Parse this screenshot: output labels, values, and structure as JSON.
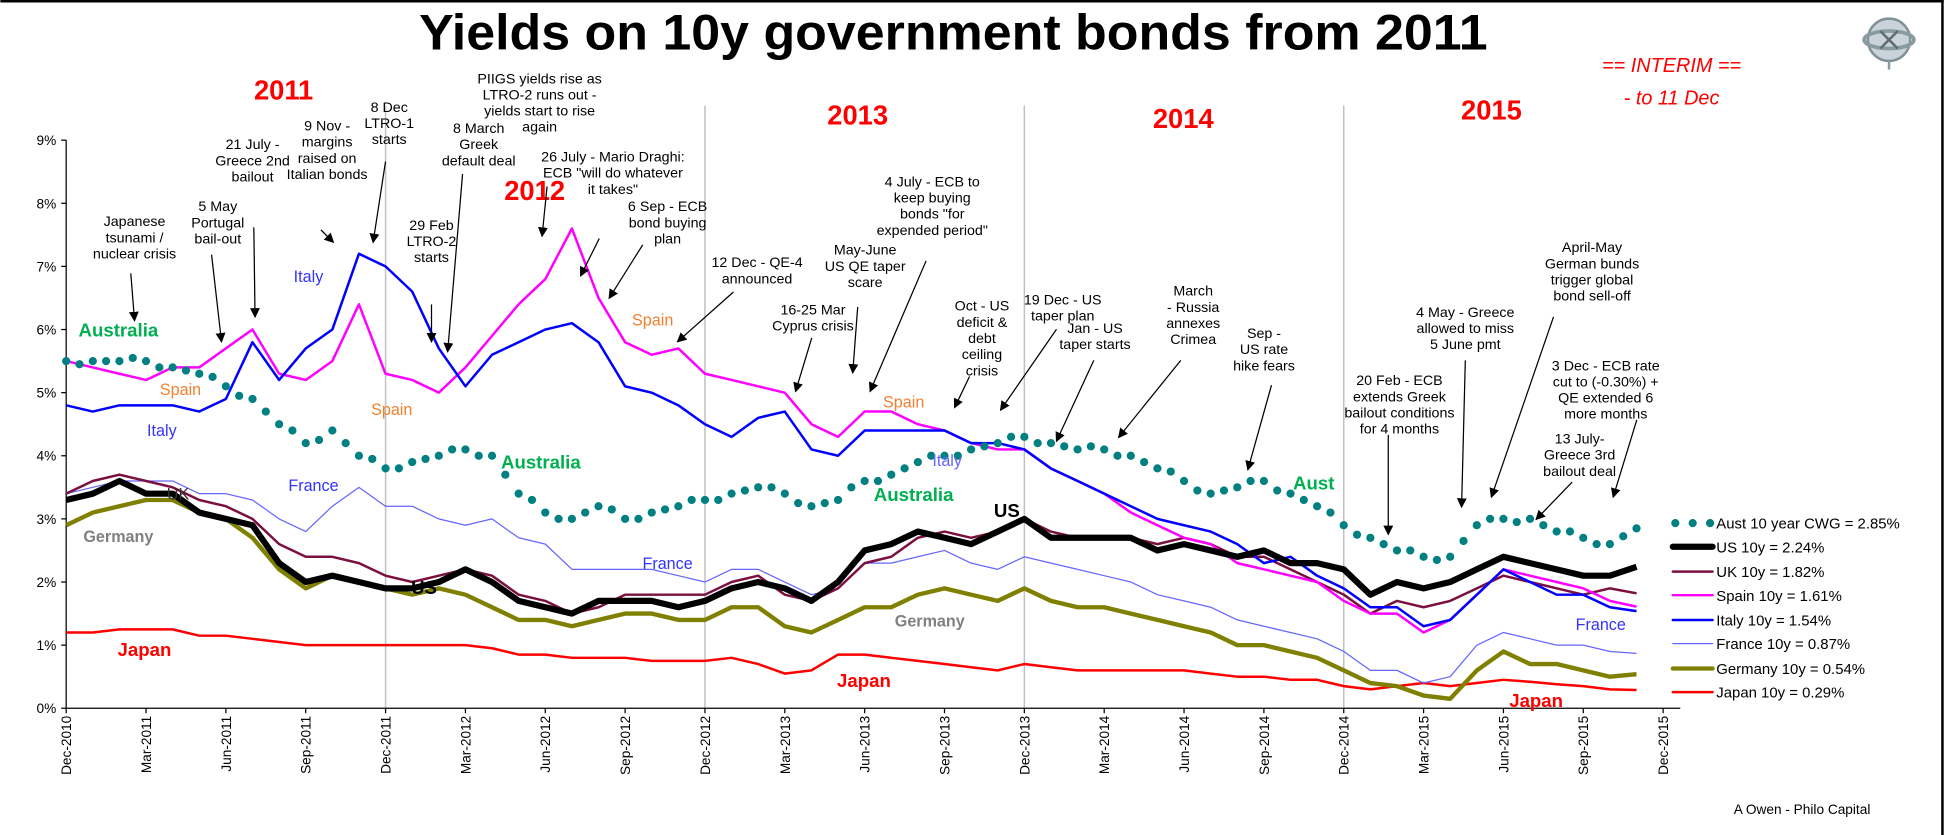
{
  "chart_data": {
    "type": "line",
    "title": "Yields on 10y government bonds from 2011",
    "note": [
      "== INTERIM ==",
      "- to 11 Dec"
    ],
    "credit": "A Owen - Philo Capital",
    "xlabel": "",
    "ylabel": "",
    "ylim": [
      0,
      9
    ],
    "y_ticks": [
      "0%",
      "1%",
      "2%",
      "3%",
      "4%",
      "5%",
      "6%",
      "7%",
      "8%",
      "9%"
    ],
    "x_start": "Dec-2010",
    "x_frequency": "monthly",
    "x_ticks": [
      "Dec-2010",
      "Mar-2011",
      "Jun-2011",
      "Sep-2011",
      "Dec-2011",
      "Mar-2012",
      "Jun-2012",
      "Sep-2012",
      "Dec-2012",
      "Mar-2013",
      "Jun-2013",
      "Sep-2013",
      "Dec-2013",
      "Mar-2014",
      "Jun-2014",
      "Sep-2014",
      "Dec-2014",
      "Mar-2015",
      "Jun-2015",
      "Sep-2015",
      "Dec-2015"
    ],
    "year_gridlines": [
      "Dec-2011",
      "Dec-2012",
      "Dec-2013",
      "Dec-2014"
    ],
    "year_labels": [
      "2011",
      "2012",
      "2013",
      "2014",
      "2015"
    ],
    "legend_position": "right",
    "series": [
      {
        "name": "Aust 10 year CWG = 2.85%",
        "style": "dots",
        "color": "#008080",
        "values": [
          5.5,
          5.5,
          5.5,
          5.5,
          5.4,
          5.3,
          5.1,
          4.9,
          4.5,
          4.2,
          4.4,
          4.0,
          3.8,
          3.9,
          4.0,
          4.1,
          4.0,
          3.4,
          3.1,
          3.0,
          3.2,
          3.0,
          3.1,
          3.2,
          3.3,
          3.4,
          3.5,
          3.4,
          3.2,
          3.3,
          3.6,
          3.7,
          3.9,
          4.0,
          4.1,
          4.2,
          4.3,
          4.2,
          4.1,
          4.1,
          4.0,
          3.8,
          3.6,
          3.4,
          3.5,
          3.6,
          3.4,
          3.2,
          2.9,
          2.7,
          2.5,
          2.4,
          2.4,
          2.9,
          3.0,
          3.0,
          2.8,
          2.7,
          2.6,
          2.85
        ]
      },
      {
        "name": "US 10y = 2.24%",
        "style": "thick",
        "color": "#000000",
        "values": [
          3.3,
          3.4,
          3.6,
          3.4,
          3.4,
          3.1,
          3.0,
          2.9,
          2.3,
          2.0,
          2.1,
          2.0,
          1.9,
          1.9,
          2.0,
          2.2,
          2.0,
          1.7,
          1.6,
          1.5,
          1.7,
          1.7,
          1.7,
          1.6,
          1.7,
          1.9,
          2.0,
          1.9,
          1.7,
          2.0,
          2.5,
          2.6,
          2.8,
          2.7,
          2.6,
          2.8,
          3.0,
          2.7,
          2.7,
          2.7,
          2.7,
          2.5,
          2.6,
          2.5,
          2.4,
          2.5,
          2.3,
          2.3,
          2.2,
          1.8,
          2.0,
          1.9,
          2.0,
          2.2,
          2.4,
          2.3,
          2.2,
          2.1,
          2.1,
          2.24
        ]
      },
      {
        "name": "UK 10y = 1.82%",
        "style": "line",
        "color": "#7b0f3f",
        "values": [
          3.4,
          3.6,
          3.7,
          3.6,
          3.5,
          3.3,
          3.2,
          3.0,
          2.6,
          2.4,
          2.4,
          2.3,
          2.1,
          2.0,
          2.1,
          2.2,
          2.1,
          1.8,
          1.7,
          1.5,
          1.6,
          1.8,
          1.8,
          1.8,
          1.8,
          2.0,
          2.1,
          1.8,
          1.7,
          1.9,
          2.3,
          2.4,
          2.7,
          2.8,
          2.7,
          2.8,
          3.0,
          2.8,
          2.7,
          2.7,
          2.7,
          2.6,
          2.7,
          2.6,
          2.4,
          2.4,
          2.2,
          2.0,
          1.8,
          1.5,
          1.7,
          1.6,
          1.7,
          1.9,
          2.1,
          2.0,
          1.9,
          1.8,
          1.9,
          1.82
        ]
      },
      {
        "name": "Spain 10y = 1.61%",
        "style": "line",
        "color": "#ff00ff",
        "values": [
          5.5,
          5.4,
          5.3,
          5.2,
          5.4,
          5.4,
          5.7,
          6.0,
          5.3,
          5.2,
          5.5,
          6.4,
          5.3,
          5.2,
          5.0,
          5.4,
          5.9,
          6.4,
          6.8,
          7.6,
          6.5,
          5.8,
          5.6,
          5.7,
          5.3,
          5.2,
          5.1,
          5.0,
          4.5,
          4.3,
          4.7,
          4.7,
          4.5,
          4.4,
          4.2,
          4.1,
          4.1,
          3.8,
          3.6,
          3.4,
          3.1,
          2.9,
          2.7,
          2.6,
          2.3,
          2.2,
          2.1,
          2.0,
          1.7,
          1.5,
          1.5,
          1.2,
          1.4,
          1.8,
          2.2,
          2.1,
          2.0,
          1.9,
          1.7,
          1.61
        ]
      },
      {
        "name": "Italy 10y = 1.54%",
        "style": "line",
        "color": "#0000ff",
        "values": [
          4.8,
          4.7,
          4.8,
          4.8,
          4.8,
          4.7,
          4.9,
          5.8,
          5.2,
          5.7,
          6.0,
          7.2,
          7.0,
          6.6,
          5.7,
          5.1,
          5.6,
          5.8,
          6.0,
          6.1,
          5.8,
          5.1,
          5.0,
          4.8,
          4.5,
          4.3,
          4.6,
          4.7,
          4.1,
          4.0,
          4.4,
          4.4,
          4.4,
          4.4,
          4.2,
          4.2,
          4.1,
          3.8,
          3.6,
          3.4,
          3.2,
          3.0,
          2.9,
          2.8,
          2.6,
          2.3,
          2.4,
          2.1,
          1.9,
          1.6,
          1.6,
          1.3,
          1.4,
          1.8,
          2.2,
          2.0,
          1.8,
          1.8,
          1.6,
          1.54
        ]
      },
      {
        "name": "France 10y = 0.87%",
        "style": "thin",
        "color": "#6666ff",
        "values": [
          3.4,
          3.5,
          3.6,
          3.6,
          3.6,
          3.4,
          3.4,
          3.3,
          3.0,
          2.8,
          3.2,
          3.5,
          3.2,
          3.2,
          3.0,
          2.9,
          3.0,
          2.7,
          2.6,
          2.2,
          2.2,
          2.2,
          2.2,
          2.1,
          2.0,
          2.2,
          2.2,
          2.0,
          1.8,
          1.9,
          2.3,
          2.3,
          2.4,
          2.5,
          2.3,
          2.2,
          2.4,
          2.3,
          2.2,
          2.1,
          2.0,
          1.8,
          1.7,
          1.6,
          1.4,
          1.3,
          1.2,
          1.1,
          0.9,
          0.6,
          0.6,
          0.4,
          0.5,
          1.0,
          1.2,
          1.1,
          1.0,
          1.0,
          0.9,
          0.87
        ]
      },
      {
        "name": "Germany 10y = 0.54%",
        "style": "medium",
        "color": "#808000",
        "values": [
          2.9,
          3.1,
          3.2,
          3.3,
          3.3,
          3.1,
          3.0,
          2.7,
          2.2,
          1.9,
          2.1,
          2.0,
          1.9,
          1.8,
          1.9,
          1.8,
          1.6,
          1.4,
          1.4,
          1.3,
          1.4,
          1.5,
          1.5,
          1.4,
          1.4,
          1.6,
          1.6,
          1.3,
          1.2,
          1.4,
          1.6,
          1.6,
          1.8,
          1.9,
          1.8,
          1.7,
          1.9,
          1.7,
          1.6,
          1.6,
          1.5,
          1.4,
          1.3,
          1.2,
          1.0,
          1.0,
          0.9,
          0.8,
          0.6,
          0.4,
          0.35,
          0.2,
          0.15,
          0.6,
          0.9,
          0.7,
          0.7,
          0.6,
          0.5,
          0.54
        ]
      },
      {
        "name": "Japan 10y = 0.29%",
        "style": "line",
        "color": "#ff0000",
        "values": [
          1.2,
          1.2,
          1.25,
          1.25,
          1.25,
          1.15,
          1.15,
          1.1,
          1.05,
          1.0,
          1.0,
          1.0,
          1.0,
          1.0,
          1.0,
          1.0,
          0.95,
          0.85,
          0.85,
          0.8,
          0.8,
          0.8,
          0.75,
          0.75,
          0.75,
          0.8,
          0.7,
          0.55,
          0.6,
          0.85,
          0.85,
          0.8,
          0.75,
          0.7,
          0.65,
          0.6,
          0.7,
          0.65,
          0.6,
          0.6,
          0.6,
          0.6,
          0.6,
          0.55,
          0.5,
          0.5,
          0.45,
          0.45,
          0.35,
          0.3,
          0.35,
          0.4,
          0.35,
          0.4,
          0.45,
          0.42,
          0.38,
          0.35,
          0.3,
          0.29
        ]
      }
    ],
    "series_labels": [
      {
        "text": "Australia",
        "color": "#00b050"
      },
      {
        "text": "Australia",
        "color": "#00b050"
      },
      {
        "text": "Australia",
        "color": "#00b050"
      },
      {
        "text": "Aust",
        "color": "#00b050"
      },
      {
        "text": "Italy",
        "color": "#3333ff"
      },
      {
        "text": "Italy",
        "color": "#3333ff"
      },
      {
        "text": "Italy",
        "color": "#6666ff"
      },
      {
        "text": "Spain",
        "color": "#f08030"
      },
      {
        "text": "Spain",
        "color": "#f08030"
      },
      {
        "text": "Spain",
        "color": "#f08030"
      },
      {
        "text": "Spain",
        "color": "#f08030"
      },
      {
        "text": "UK",
        "color": "#333333"
      },
      {
        "text": "France",
        "color": "#3333ff"
      },
      {
        "text": "France",
        "color": "#3333ff"
      },
      {
        "text": "France",
        "color": "#3333ff"
      },
      {
        "text": "Germany",
        "color": "#808080"
      },
      {
        "text": "Germany",
        "color": "#808080"
      },
      {
        "text": "US",
        "color": "#000000"
      },
      {
        "text": "US",
        "color": "#000000"
      },
      {
        "text": "Japan",
        "color": "#ff0000"
      },
      {
        "text": "Japan",
        "color": "#ff0000"
      },
      {
        "text": "Japan",
        "color": "#ff0000"
      }
    ],
    "annotations": [
      [
        "Japanese",
        "tsunami /",
        "nuclear crisis"
      ],
      [
        "5 May",
        "Portugal",
        "bail-out"
      ],
      [
        "21 July -",
        "Greece 2nd",
        "bailout"
      ],
      [
        "9 Nov -",
        "margins",
        "raised on",
        "Italian bonds"
      ],
      [
        "8 Dec",
        "LTRO-1",
        "starts"
      ],
      [
        "29 Feb",
        "LTRO-2",
        "starts"
      ],
      [
        "8 March",
        "Greek",
        "default deal"
      ],
      [
        "PIIGS yields rise as",
        "LTRO-2 runs out -",
        "yields start to rise",
        "again"
      ],
      [
        "26 July - Mario Draghi:",
        "ECB \"will do whatever",
        "it takes\""
      ],
      [
        "6 Sep - ECB",
        "bond buying",
        "plan"
      ],
      [
        "12 Dec - QE-4",
        "announced"
      ],
      [
        "16-25 Mar",
        "Cyprus crisis"
      ],
      [
        "May-June",
        "US QE taper",
        "scare"
      ],
      [
        "4 July - ECB to",
        "keep buying",
        "bonds \"for",
        "expended period\""
      ],
      [
        "Oct - US",
        "deficit &",
        "debt",
        "ceiling",
        "crisis"
      ],
      [
        "19 Dec - US",
        "taper plan"
      ],
      [
        "Jan - US",
        "taper starts"
      ],
      [
        "March",
        "- Russia",
        "annexes",
        "Crimea"
      ],
      [
        "Sep -",
        "US rate",
        "hike fears"
      ],
      [
        "20 Feb - ECB",
        "extends Greek",
        "bailout conditions",
        "for 4 months"
      ],
      [
        "4 May - Greece",
        "allowed to miss",
        "5 June pmt"
      ],
      [
        "April-May",
        "German bunds",
        "trigger global",
        "bond sell-off"
      ],
      [
        "13 July-",
        "Greece 3rd",
        "bailout deal"
      ],
      [
        "3 Dec - ECB  rate",
        "cut to (-0.30%) +",
        "QE extended 6",
        "more months"
      ]
    ]
  }
}
